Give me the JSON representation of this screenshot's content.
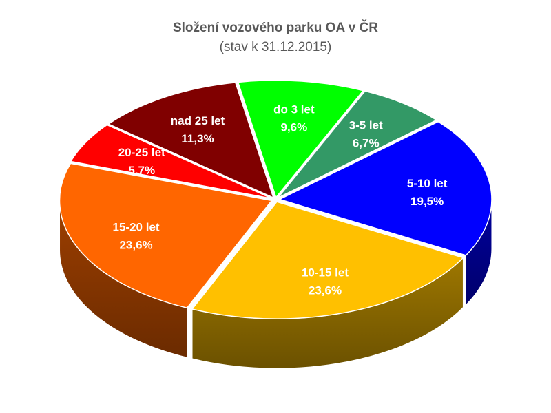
{
  "chart_data": {
    "type": "pie",
    "title": "Složení vozového parku OA v ČR",
    "subtitle": "(stav k 31.12.2015)",
    "style": "3d-exploded",
    "slices": [
      {
        "label": "do 3 let",
        "value": 9.6,
        "value_label": "9,6%",
        "color": "#00ff00"
      },
      {
        "label": "3-5 let",
        "value": 6.7,
        "value_label": "6,7%",
        "color": "#339966"
      },
      {
        "label": "5-10 let",
        "value": 19.5,
        "value_label": "19,5%",
        "color": "#0000ff"
      },
      {
        "label": "10-15 let",
        "value": 23.6,
        "value_label": "23,6%",
        "color": "#ffc000"
      },
      {
        "label": "15-20 let",
        "value": 23.6,
        "value_label": "23,6%",
        "color": "#ff6600"
      },
      {
        "label": "20-25 let",
        "value": 5.7,
        "value_label": "5,7%",
        "color": "#ff0000"
      },
      {
        "label": "nad 25 let",
        "value": 11.3,
        "value_label": "11,3%",
        "color": "#800000"
      }
    ]
  }
}
